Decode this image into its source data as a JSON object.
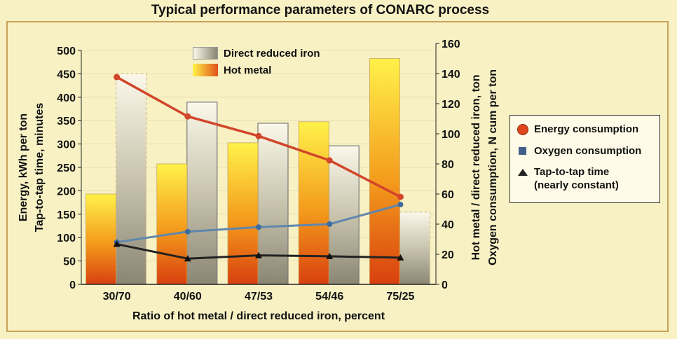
{
  "chart_data": {
    "type": "bar",
    "title": "Typical performance parameters of CONARC process",
    "xlabel": "Ratio of hot metal / direct reduced iron, percent",
    "ylabel_left": [
      "Energy, kWh per ton",
      "Tap-to-tap time, minutes"
    ],
    "ylabel_right": [
      "Hot metal / direct reduced iron, ton",
      "Oxygen consumption, N cum per ton"
    ],
    "categories": [
      "30/70",
      "40/60",
      "47/53",
      "54/46",
      "75/25"
    ],
    "ylim_left": [
      0,
      500
    ],
    "ylim_right": [
      0,
      160
    ],
    "yticks_left": [
      "0",
      "50",
      "100",
      "150",
      "200",
      "250",
      "300",
      "350",
      "400",
      "450",
      "500"
    ],
    "yticks_right": [
      "0",
      "20",
      "40",
      "60",
      "80",
      "100",
      "120",
      "140",
      "160"
    ],
    "bar_series": [
      {
        "name": "Hot metal",
        "axis": "right",
        "values": [
          60,
          80,
          94,
          108,
          150
        ],
        "color": "#f29b1a"
      },
      {
        "name": "Direct reduced iron",
        "axis": "right",
        "values": [
          140,
          121,
          107,
          92,
          48
        ],
        "color": "#c8c2ac"
      }
    ],
    "line_series": [
      {
        "name": "Energy consumption",
        "axis": "left",
        "values": [
          443,
          359,
          317,
          265,
          187
        ],
        "color": "#d2452a",
        "marker": "circle"
      },
      {
        "name": "Oxygen consumption",
        "axis": "right",
        "values": [
          28,
          35,
          38,
          40,
          53
        ],
        "color": "#5f87ad",
        "marker": "square"
      },
      {
        "name": "Tap-to-tap time",
        "note": "(nearly constant)",
        "axis": "left",
        "values": [
          86,
          55,
          62,
          60,
          57
        ],
        "color": "#222222",
        "marker": "triangle"
      }
    ]
  }
}
